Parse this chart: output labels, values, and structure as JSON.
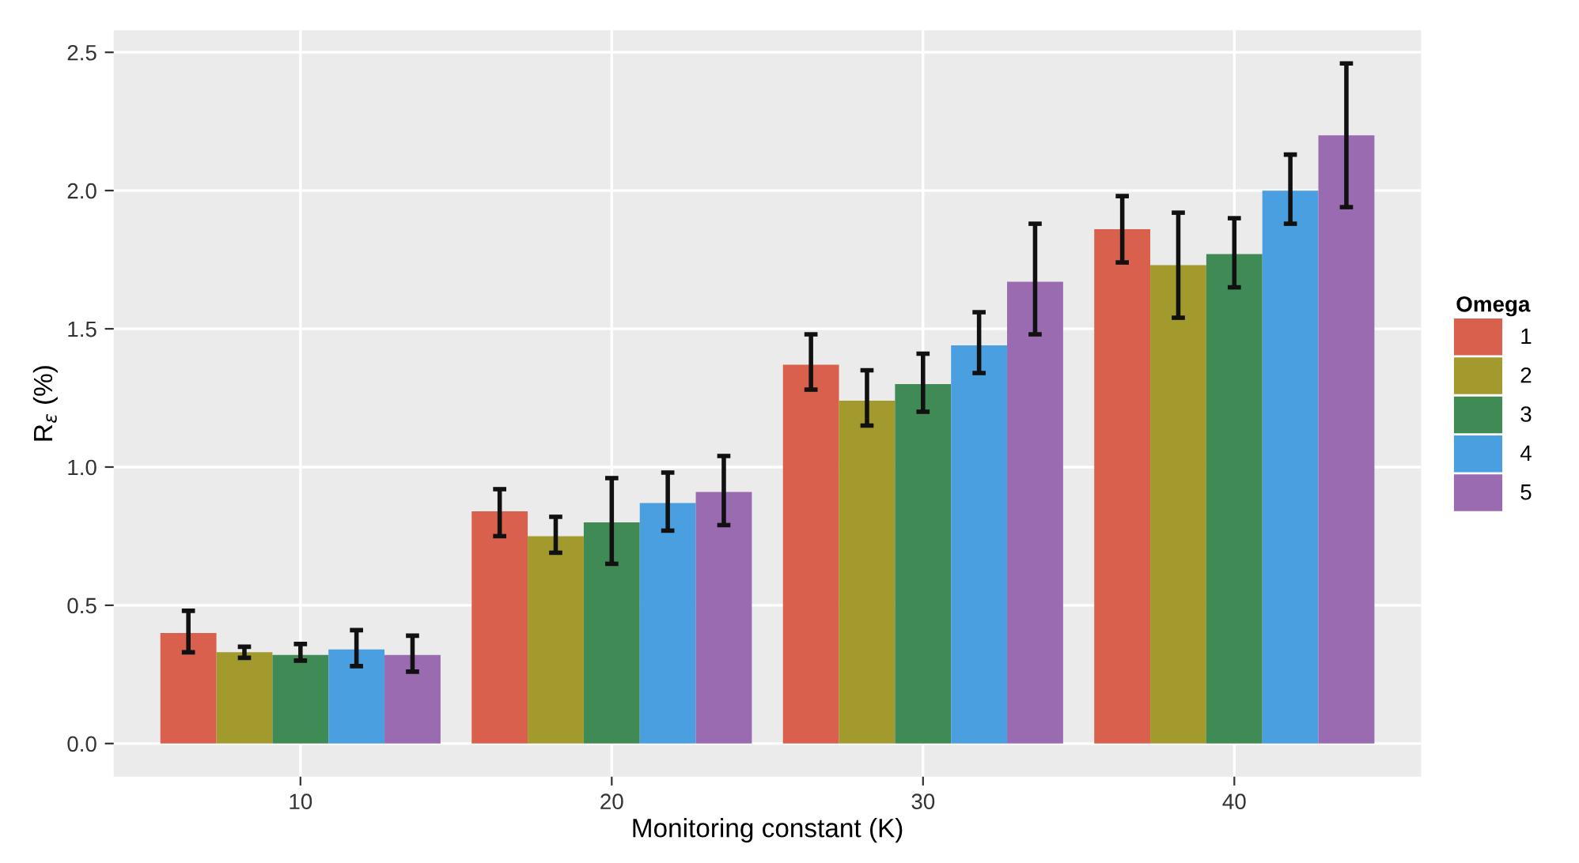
{
  "chart_data": {
    "type": "bar",
    "xlabel": "Monitoring constant (K)",
    "ylabel": "R$_{ε}$ (%)",
    "legend_title": "Omega",
    "categories": [
      "10",
      "20",
      "30",
      "40"
    ],
    "series": [
      {
        "name": "1",
        "color": "#d9604c",
        "values": [
          0.4,
          0.84,
          1.37,
          1.86
        ],
        "errors": [
          [
            0.33,
            0.48
          ],
          [
            0.75,
            0.92
          ],
          [
            1.28,
            1.48
          ],
          [
            1.74,
            1.98
          ]
        ]
      },
      {
        "name": "2",
        "color": "#a39a2e",
        "values": [
          0.33,
          0.75,
          1.24,
          1.73
        ],
        "errors": [
          [
            0.31,
            0.35
          ],
          [
            0.69,
            0.82
          ],
          [
            1.15,
            1.35
          ],
          [
            1.54,
            1.92
          ]
        ]
      },
      {
        "name": "3",
        "color": "#3f8a55",
        "values": [
          0.32,
          0.8,
          1.3,
          1.77
        ],
        "errors": [
          [
            0.3,
            0.36
          ],
          [
            0.65,
            0.96
          ],
          [
            1.2,
            1.41
          ],
          [
            1.65,
            1.9
          ]
        ]
      },
      {
        "name": "4",
        "color": "#4a9fe0",
        "values": [
          0.34,
          0.87,
          1.44,
          2.0
        ],
        "errors": [
          [
            0.28,
            0.41
          ],
          [
            0.77,
            0.98
          ],
          [
            1.34,
            1.56
          ],
          [
            1.88,
            2.13
          ]
        ]
      },
      {
        "name": "5",
        "color": "#9a6bb0",
        "values": [
          0.32,
          0.91,
          1.67,
          2.2
        ],
        "errors": [
          [
            0.26,
            0.39
          ],
          [
            0.79,
            1.04
          ],
          [
            1.48,
            1.88
          ],
          [
            1.94,
            2.46
          ]
        ]
      }
    ],
    "ylim": [
      -0.12,
      2.58
    ],
    "yticks": [
      {
        "value": 0,
        "label": "0.0"
      },
      0.5,
      {
        "value": 1,
        "label": "1.0"
      },
      1.5,
      {
        "value": 2,
        "label": "2.0"
      },
      2.5
    ],
    "grid": true,
    "legend": "right"
  }
}
